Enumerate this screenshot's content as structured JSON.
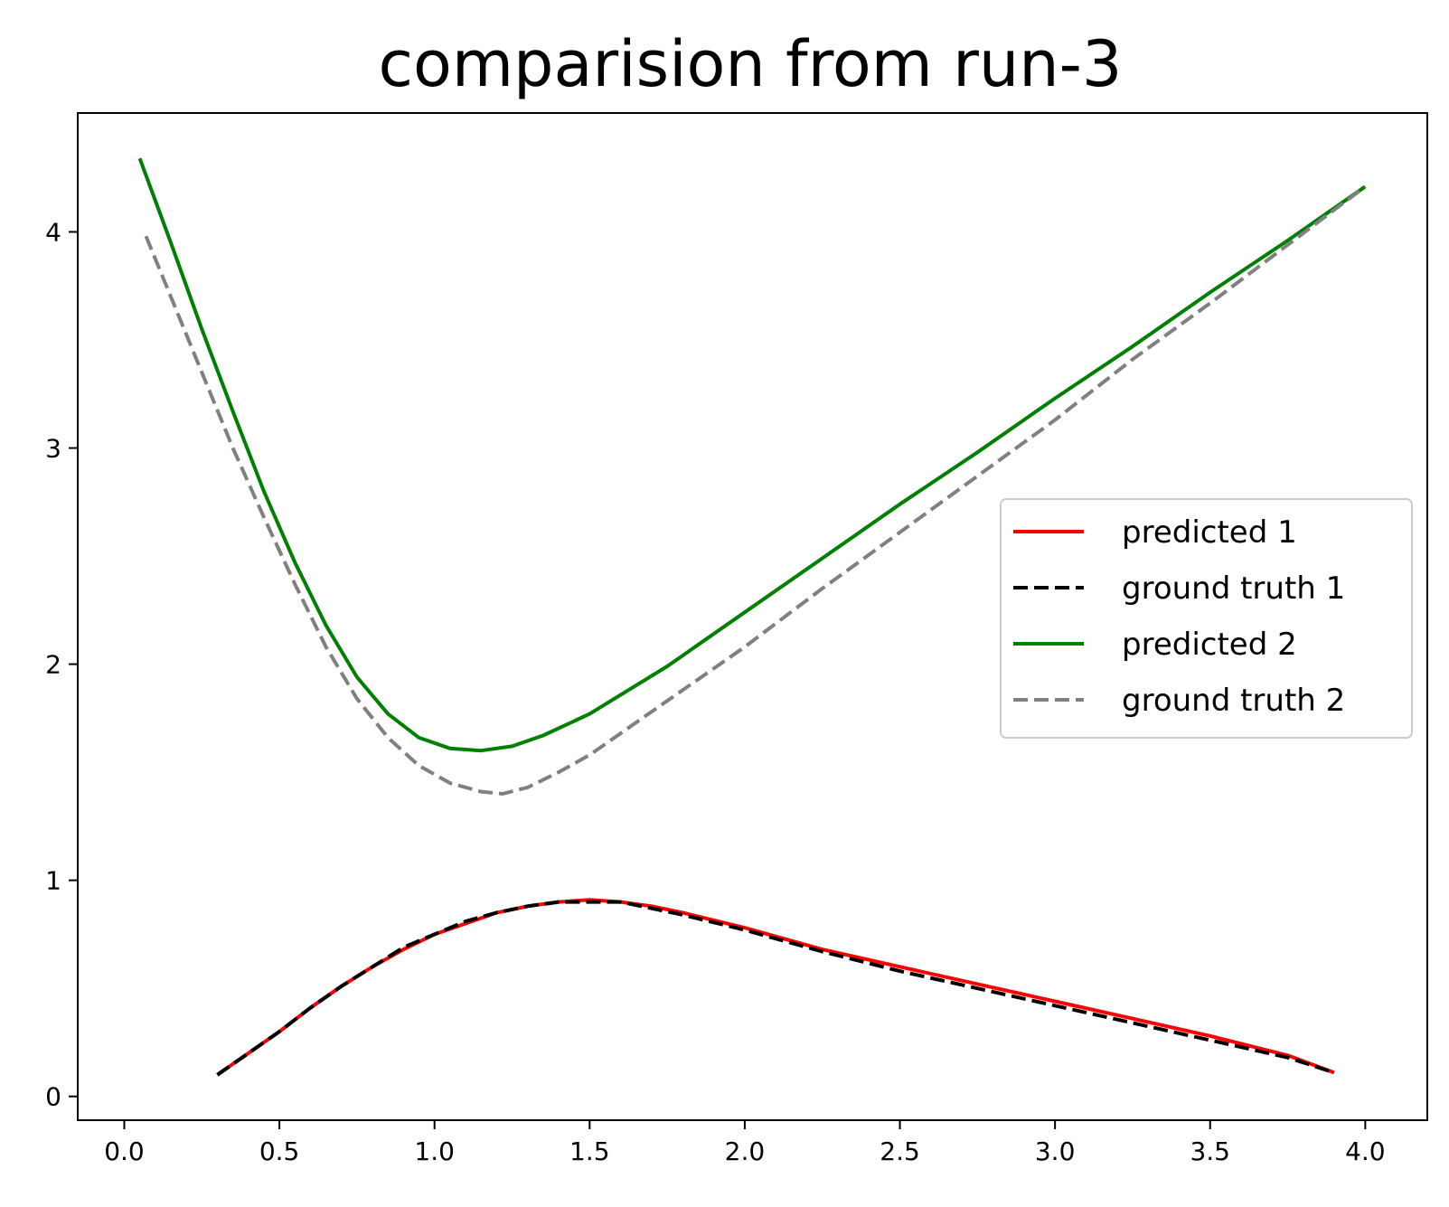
{
  "chart_data": {
    "type": "line",
    "title": "comparision from run-3",
    "xlabel": "",
    "ylabel": "",
    "xlim": [
      -0.15,
      4.2
    ],
    "ylim": [
      -0.11,
      4.55
    ],
    "xticks": [
      0.0,
      0.5,
      1.0,
      1.5,
      2.0,
      2.5,
      3.0,
      3.5,
      4.0
    ],
    "xtick_labels": [
      "0.0",
      "0.5",
      "1.0",
      "1.5",
      "2.0",
      "2.5",
      "3.0",
      "3.5",
      "4.0"
    ],
    "yticks": [
      0,
      1,
      2,
      3,
      4
    ],
    "ytick_labels": [
      "0",
      "1",
      "2",
      "3",
      "4"
    ],
    "grid": false,
    "legend_position": "center-right",
    "series": [
      {
        "name": "predicted 1",
        "color": "#ff0000",
        "dash": "solid",
        "x": [
          0.3,
          0.4,
          0.5,
          0.6,
          0.7,
          0.8,
          0.9,
          1.0,
          1.1,
          1.2,
          1.3,
          1.4,
          1.5,
          1.6,
          1.7,
          1.8,
          2.0,
          2.25,
          2.5,
          2.75,
          3.0,
          3.25,
          3.5,
          3.75,
          3.9
        ],
        "y": [
          0.1,
          0.2,
          0.3,
          0.41,
          0.51,
          0.6,
          0.68,
          0.75,
          0.8,
          0.85,
          0.88,
          0.9,
          0.91,
          0.9,
          0.88,
          0.85,
          0.78,
          0.68,
          0.6,
          0.52,
          0.44,
          0.36,
          0.28,
          0.19,
          0.11
        ]
      },
      {
        "name": "ground truth 1",
        "color": "#000000",
        "dash": "dashed",
        "x": [
          0.3,
          0.4,
          0.5,
          0.6,
          0.7,
          0.8,
          0.9,
          1.0,
          1.1,
          1.2,
          1.3,
          1.4,
          1.5,
          1.6,
          1.7,
          1.8,
          2.0,
          2.25,
          2.5,
          2.75,
          3.0,
          3.25,
          3.5,
          3.75,
          3.9
        ],
        "y": [
          0.1,
          0.2,
          0.3,
          0.41,
          0.51,
          0.6,
          0.69,
          0.75,
          0.81,
          0.85,
          0.88,
          0.9,
          0.9,
          0.9,
          0.87,
          0.84,
          0.77,
          0.67,
          0.58,
          0.5,
          0.42,
          0.34,
          0.26,
          0.18,
          0.11
        ]
      },
      {
        "name": "predicted 2",
        "color": "#008000",
        "dash": "solid",
        "x": [
          0.05,
          0.15,
          0.25,
          0.35,
          0.45,
          0.55,
          0.65,
          0.75,
          0.85,
          0.95,
          1.05,
          1.15,
          1.25,
          1.35,
          1.5,
          1.75,
          2.0,
          2.25,
          2.5,
          2.75,
          3.0,
          3.25,
          3.5,
          3.75,
          4.0
        ],
        "y": [
          4.34,
          3.95,
          3.55,
          3.17,
          2.8,
          2.47,
          2.18,
          1.94,
          1.77,
          1.66,
          1.61,
          1.6,
          1.62,
          1.67,
          1.77,
          1.99,
          2.24,
          2.49,
          2.74,
          2.98,
          3.23,
          3.47,
          3.72,
          3.96,
          4.21
        ]
      },
      {
        "name": "ground truth 2",
        "color": "#808080",
        "dash": "dashed",
        "x": [
          0.07,
          0.15,
          0.25,
          0.35,
          0.45,
          0.55,
          0.65,
          0.75,
          0.85,
          0.95,
          1.05,
          1.15,
          1.22,
          1.3,
          1.4,
          1.5,
          1.75,
          2.0,
          2.25,
          2.5,
          2.75,
          3.0,
          3.25,
          3.5,
          3.75,
          4.0
        ],
        "y": [
          3.98,
          3.7,
          3.35,
          3.0,
          2.68,
          2.37,
          2.08,
          1.84,
          1.66,
          1.53,
          1.45,
          1.41,
          1.4,
          1.43,
          1.5,
          1.58,
          1.83,
          2.08,
          2.35,
          2.61,
          2.87,
          3.13,
          3.41,
          3.67,
          3.94,
          4.21
        ]
      }
    ]
  }
}
